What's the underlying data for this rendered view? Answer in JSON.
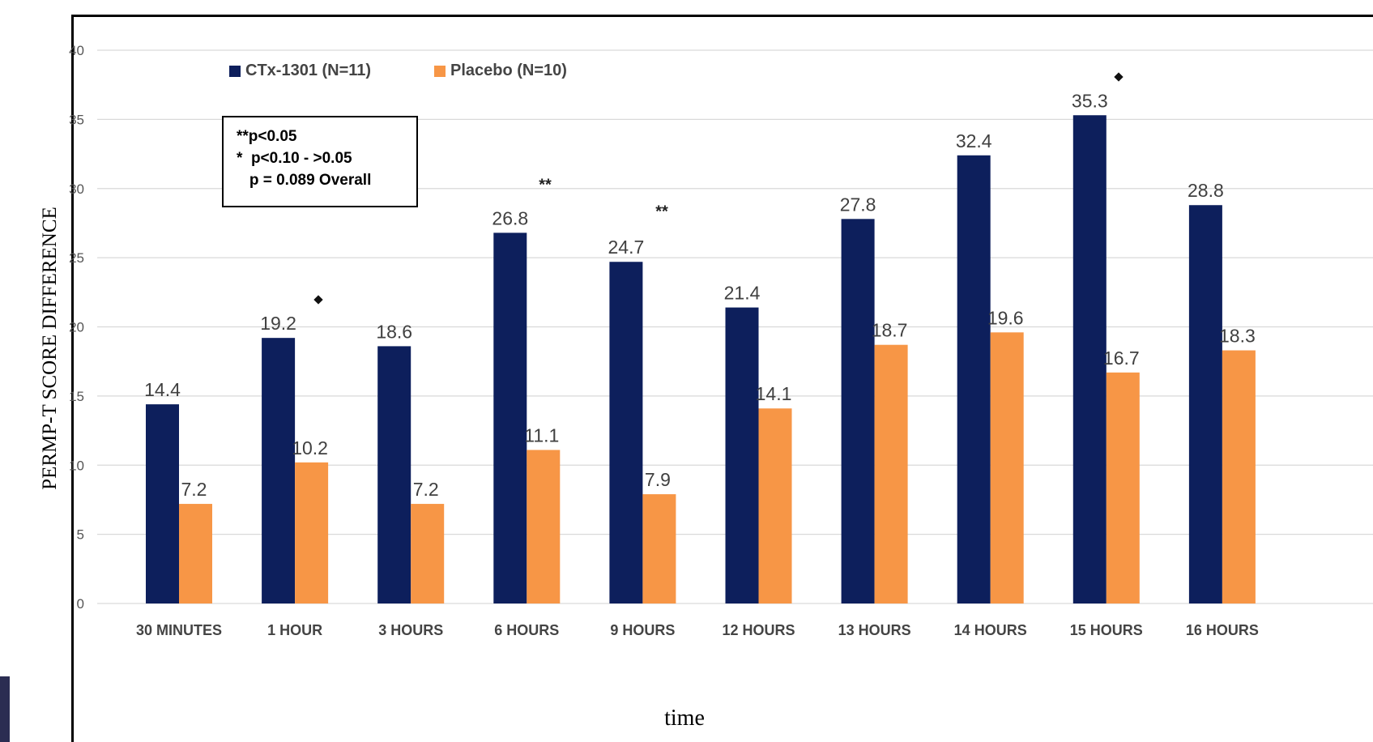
{
  "chart_data": {
    "type": "bar",
    "ylabel": "PERMP-T SCORE DIFFERENCE",
    "xlabel": "time",
    "ylim": [
      0,
      40
    ],
    "yticks": [
      0,
      5,
      10,
      15,
      20,
      25,
      30,
      35,
      40
    ],
    "grid": true,
    "legend_position": "top-left",
    "categories": [
      "30 MINUTES",
      "1 HOUR",
      "3 HOURS",
      "6 HOURS",
      "9 HOURS",
      "12 HOURS",
      "13 HOURS",
      "14 HOURS",
      "15 HOURS",
      "16 HOURS"
    ],
    "series": [
      {
        "name": "CTx-1301 (N=11)",
        "color": "#0d1f5c",
        "values": [
          14.4,
          19.2,
          18.6,
          26.8,
          24.7,
          21.4,
          27.8,
          32.4,
          35.3,
          28.8
        ],
        "labels": [
          "14.4",
          "19.2",
          "18.6",
          "26.8",
          "24.7",
          "21.4",
          "27.8",
          "32.4",
          "35.3",
          "28.8"
        ]
      },
      {
        "name": "Placebo (N=10)",
        "color": "#f79646",
        "values": [
          7.2,
          10.2,
          7.2,
          11.1,
          7.9,
          14.1,
          18.7,
          19.6,
          16.7,
          18.3
        ],
        "labels": [
          "7.2",
          "10.2",
          "7.2",
          "11.1",
          "7.9",
          "14.1",
          "18.7",
          "19.6",
          "16.7",
          "18.3"
        ]
      }
    ],
    "significance": [
      {
        "category": "1 HOUR",
        "mark": "*"
      },
      {
        "category": "6 HOURS",
        "mark": "**"
      },
      {
        "category": "9 HOURS",
        "mark": "**"
      },
      {
        "category": "15 HOURS",
        "mark": "*"
      }
    ],
    "annotation_box": {
      "lines": [
        "**p<0.05",
        "*  p<0.10 - >0.05",
        "   p = 0.089 Overall"
      ]
    }
  },
  "colors": {
    "grid": "#d9d9d9",
    "tick_label": "#555555",
    "data_label": "#404040",
    "category_label": "#444444"
  },
  "icons": {
    "significant_marker": "diamond-marker-icon"
  }
}
